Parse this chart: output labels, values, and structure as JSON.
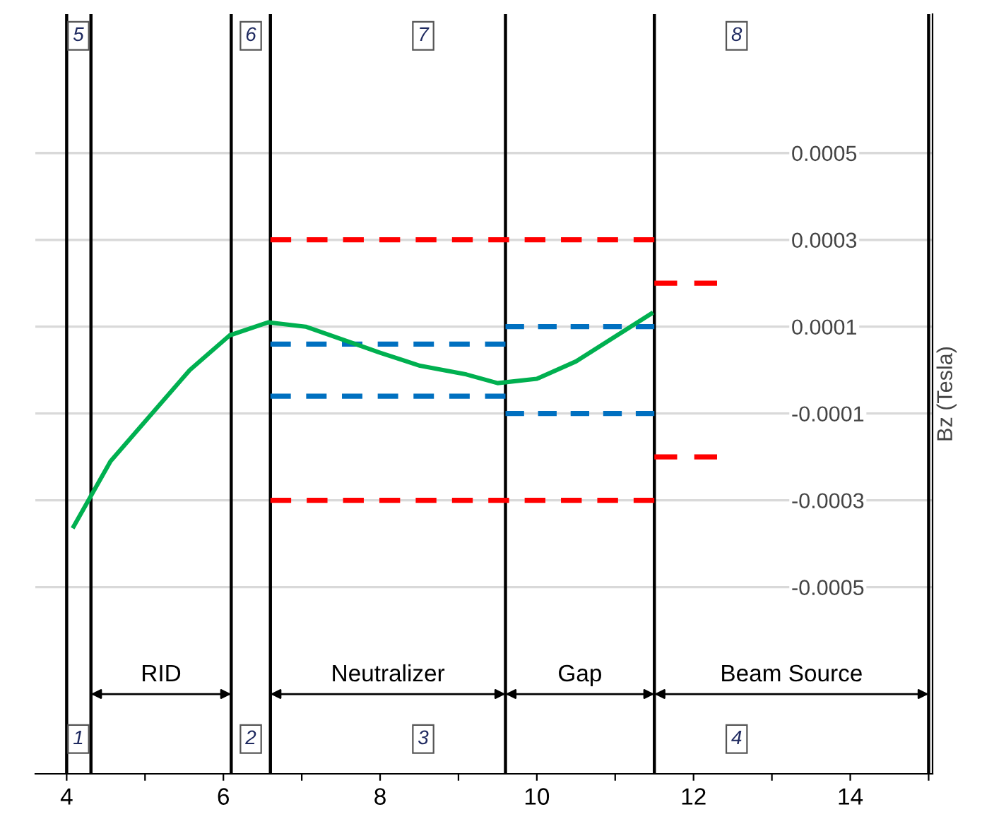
{
  "chart_data": {
    "type": "line",
    "ylabel": "Bz (Tesla)",
    "grid": "y",
    "xlim": [
      3.6,
      15.05
    ],
    "ylim": [
      -0.00093,
      0.00082
    ],
    "xticks": [
      4,
      {
        "value": 5,
        "label": null
      },
      6,
      {
        "value": 7,
        "label": null
      },
      8,
      {
        "value": 9,
        "label": null
      },
      10,
      {
        "value": 11,
        "label": null
      },
      12,
      {
        "value": 13,
        "label": null
      },
      14,
      {
        "value": 15,
        "label": null
      }
    ],
    "yticks": [
      -0.0005,
      -0.0003,
      -0.0001,
      0.0001,
      0.0003,
      0.0005
    ],
    "series": [
      {
        "color": "#00b050",
        "line_style": "solid",
        "x": [
          4.09,
          4.56,
          5.57,
          6.08,
          6.57,
          7.05,
          8.0,
          8.51,
          9.1,
          9.5,
          10.0,
          10.5,
          11.46
        ],
        "values": [
          -0.00036,
          -0.00021,
          0.0,
          8e-05,
          0.00011,
          0.0001,
          4e-05,
          1e-05,
          -1e-05,
          -3e-05,
          -2e-05,
          2e-05,
          0.00013
        ]
      },
      {
        "color": "#ff0000",
        "line_style": "dashed",
        "x": [
          6.6,
          11.5
        ],
        "values": [
          0.0003,
          0.0003
        ]
      },
      {
        "color": "#ff0000",
        "line_style": "dashed",
        "x": [
          6.6,
          11.5
        ],
        "values": [
          -0.0003,
          -0.0003
        ]
      },
      {
        "color": "#ff0000",
        "line_style": "dashed",
        "x": [
          11.5,
          12.3
        ],
        "values": [
          0.0002,
          0.0002
        ]
      },
      {
        "color": "#ff0000",
        "line_style": "dashed",
        "x": [
          11.5,
          12.3
        ],
        "values": [
          -0.0002,
          -0.0002
        ]
      },
      {
        "color": "#0070c0",
        "line_style": "dashed",
        "x": [
          6.6,
          9.6
        ],
        "values": [
          6e-05,
          6e-05
        ]
      },
      {
        "color": "#0070c0",
        "line_style": "dashed",
        "x": [
          6.6,
          9.6
        ],
        "values": [
          -6e-05,
          -6e-05
        ]
      },
      {
        "color": "#0070c0",
        "line_style": "dashed",
        "x": [
          9.6,
          11.5
        ],
        "values": [
          0.0001,
          0.0001
        ]
      },
      {
        "color": "#0070c0",
        "line_style": "dashed",
        "x": [
          9.6,
          11.5
        ],
        "values": [
          -0.0001,
          -0.0001
        ]
      }
    ],
    "ref_lines": [
      {
        "axis": "x",
        "value": 4.0,
        "label": null,
        "color": "#000000"
      },
      {
        "axis": "x",
        "value": 4.31,
        "label": null,
        "color": "#000000"
      },
      {
        "axis": "x",
        "value": 6.1,
        "label": null,
        "color": "#000000"
      },
      {
        "axis": "x",
        "value": 6.6,
        "label": null,
        "color": "#000000"
      },
      {
        "axis": "x",
        "value": 9.6,
        "label": null,
        "color": "#000000"
      },
      {
        "axis": "x",
        "value": 11.5,
        "label": null,
        "color": "#000000"
      },
      {
        "axis": "x",
        "value": 15.0,
        "label": null,
        "color": "#000000"
      }
    ],
    "annotations": [
      "RID",
      "Neutralizer",
      "Gap",
      "Beam Source",
      {
        "text": "1",
        "x": 4.15,
        "y": -0.00085
      },
      {
        "text": "2",
        "x": 6.35,
        "y": -0.00085
      },
      {
        "text": "3",
        "x": 8.55,
        "y": -0.00085
      },
      {
        "text": "4",
        "x": 12.55,
        "y": -0.00085
      },
      {
        "text": "5",
        "x": 4.15,
        "y": 0.00077
      },
      {
        "text": "6",
        "x": 6.35,
        "y": 0.00077
      },
      {
        "text": "7",
        "x": 8.55,
        "y": 0.00077
      },
      {
        "text": "8",
        "x": 12.55,
        "y": 0.00077
      }
    ]
  }
}
